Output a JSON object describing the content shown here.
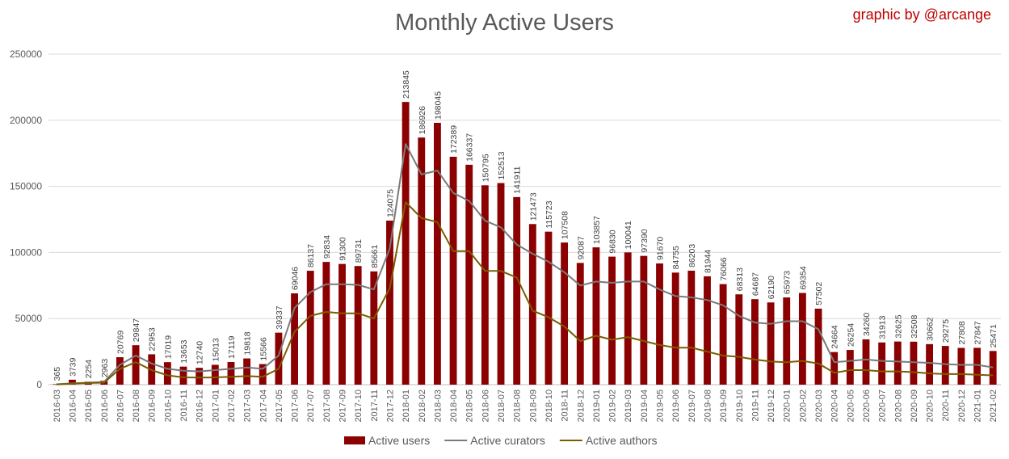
{
  "credit": "graphic by @arcange",
  "colors": {
    "users": "#8b0000",
    "curators": "#7a7a7a",
    "authors": "#7a5c00",
    "grid": "#d9d9d9",
    "text": "#595959"
  },
  "chart_data": {
    "type": "bar",
    "title": "Monthly Active Users",
    "xlabel": "",
    "ylabel": "",
    "ylim": [
      0,
      250000
    ],
    "yticks": [
      "0",
      "50000",
      "100000",
      "150000",
      "200000",
      "250000"
    ],
    "grid": true,
    "legend_position": "bottom",
    "categories": [
      "2016-03",
      "2016-04",
      "2016-05",
      "2016-06",
      "2016-07",
      "2016-08",
      "2016-09",
      "2016-10",
      "2016-11",
      "2016-12",
      "2017-01",
      "2017-02",
      "2017-03",
      "2017-04",
      "2017-05",
      "2017-06",
      "2017-07",
      "2017-08",
      "2017-09",
      "2017-10",
      "2017-11",
      "2017-12",
      "2018-01",
      "2018-02",
      "2018-03",
      "2018-04",
      "2018-05",
      "2018-06",
      "2018-07",
      "2018-08",
      "2018-09",
      "2018-10",
      "2018-11",
      "2018-12",
      "2019-01",
      "2019-02",
      "2019-03",
      "2019-04",
      "2019-05",
      "2019-06",
      "2019-07",
      "2019-08",
      "2019-09",
      "2019-10",
      "2019-11",
      "2019-12",
      "2020-01",
      "2020-02",
      "2020-03",
      "2020-04",
      "2020-05",
      "2020-06",
      "2020-07",
      "2020-08",
      "2020-09",
      "2020-10",
      "2020-11",
      "2020-12",
      "2021-01",
      "2021-02"
    ],
    "series": [
      {
        "name": "Active users",
        "kind": "bar",
        "values": [
          365,
          3739,
          2254,
          2963,
          20769,
          29847,
          22953,
          17019,
          13653,
          12740,
          15013,
          17119,
          19818,
          15566,
          39337,
          69046,
          86137,
          92834,
          91300,
          89731,
          85661,
          124075,
          213845,
          186926,
          198045,
          172389,
          166337,
          150795,
          152513,
          141911,
          121473,
          115723,
          107508,
          92087,
          103857,
          96830,
          100041,
          97390,
          91670,
          84755,
          86203,
          81944,
          76066,
          68313,
          64687,
          62190,
          65973,
          69354,
          57502,
          24664,
          26254,
          34260,
          31913,
          32625,
          32508,
          30662,
          29275,
          27808,
          27847,
          25471
        ],
        "labels": [
          "365",
          "3739",
          "2254",
          "2963",
          "20769",
          "29847",
          "22953",
          "17019",
          "13653",
          "12740",
          "15013",
          "17119",
          "19818",
          "15566",
          "39337",
          "69046",
          "86137",
          "92834",
          "91300",
          "89731",
          "85661",
          "124075",
          "213845",
          "186926",
          "198045",
          "172389",
          "166337",
          "150795",
          "152513",
          "141911",
          "121473",
          "115723",
          "107508",
          "92087",
          "103857",
          "96830",
          "100041",
          "97390",
          "91670",
          "84755",
          "86203",
          "81944",
          "76066",
          "68313",
          "64687",
          "62190",
          "65973",
          "69354",
          "57502",
          "24664",
          "26254",
          "34260",
          "31913",
          "32625",
          "32508",
          "30662",
          "29275",
          "27808",
          "27847",
          "25471"
        ]
      },
      {
        "name": "Active curators",
        "kind": "line",
        "values": [
          300,
          1000,
          1500,
          2000,
          15000,
          22000,
          16000,
          12000,
          10500,
          10000,
          11000,
          12000,
          13000,
          12000,
          22000,
          58000,
          70000,
          76000,
          76000,
          75500,
          72000,
          103000,
          182000,
          159000,
          162000,
          145000,
          139000,
          124000,
          119000,
          106000,
          99000,
          93000,
          85000,
          75000,
          78000,
          77000,
          78000,
          78000,
          72000,
          67000,
          66000,
          64000,
          60000,
          52000,
          47000,
          46000,
          48000,
          48000,
          42000,
          17000,
          18000,
          19000,
          18000,
          17500,
          17000,
          16500,
          15500,
          15000,
          15000,
          13000
        ]
      },
      {
        "name": "Active authors",
        "kind": "line",
        "values": [
          200,
          800,
          1200,
          1500,
          12000,
          17000,
          11000,
          7000,
          5500,
          5300,
          5500,
          6000,
          6500,
          6000,
          12000,
          40000,
          52000,
          55000,
          54000,
          54000,
          50000,
          73000,
          138000,
          126000,
          123000,
          101000,
          101000,
          86000,
          86000,
          81000,
          56000,
          51000,
          44000,
          33000,
          37000,
          34000,
          36000,
          33000,
          30000,
          28000,
          28000,
          25000,
          22000,
          21000,
          19000,
          17500,
          17000,
          18000,
          16000,
          9000,
          11000,
          11000,
          10000,
          10000,
          9500,
          8500,
          8000,
          8000,
          7500,
          7000
        ]
      }
    ]
  }
}
